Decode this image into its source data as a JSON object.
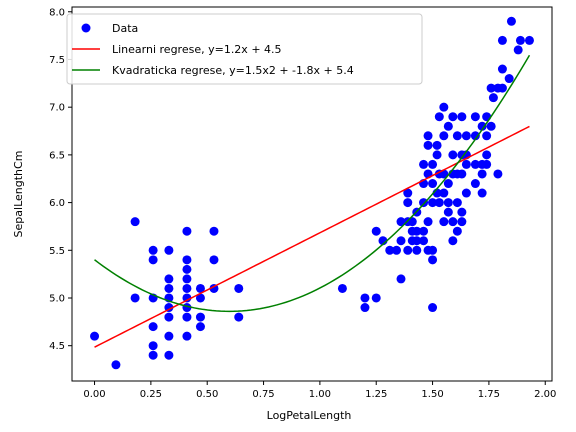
{
  "chart_data": {
    "type": "scatter",
    "xlabel": "LogPetalLength",
    "ylabel": "SepalLengthCm",
    "xlim": [
      -0.1,
      2.03
    ],
    "ylim": [
      4.13,
      8.05
    ],
    "xticks": [
      0.0,
      0.25,
      0.5,
      0.75,
      1.0,
      1.25,
      1.5,
      1.75,
      2.0
    ],
    "xtick_labels": [
      "0.00",
      "0.25",
      "0.50",
      "0.75",
      "1.00",
      "1.25",
      "1.50",
      "1.75",
      "2.00"
    ],
    "yticks": [
      4.5,
      5.0,
      5.5,
      6.0,
      6.5,
      7.0,
      7.5,
      8.0
    ],
    "ytick_labels": [
      "4.5",
      "5.0",
      "5.5",
      "6.0",
      "6.5",
      "7.0",
      "7.5",
      "8.0"
    ],
    "grid": false,
    "legend_placement": "top-left",
    "colors": {
      "data": "#0000ff",
      "linear": "#ff0000",
      "quadratic": "#008000"
    },
    "series": [
      {
        "name": "Data",
        "kind": "scatter",
        "points": [
          [
            0.0,
            4.6
          ],
          [
            0.095,
            4.3
          ],
          [
            0.18,
            5.8
          ],
          [
            0.18,
            5.0
          ],
          [
            0.26,
            5.5
          ],
          [
            0.26,
            5.4
          ],
          [
            0.26,
            5.0
          ],
          [
            0.26,
            4.7
          ],
          [
            0.26,
            4.5
          ],
          [
            0.26,
            4.4
          ],
          [
            0.33,
            5.5
          ],
          [
            0.33,
            5.2
          ],
          [
            0.33,
            5.1
          ],
          [
            0.33,
            5.0
          ],
          [
            0.33,
            4.9
          ],
          [
            0.33,
            4.8
          ],
          [
            0.33,
            4.6
          ],
          [
            0.33,
            4.4
          ],
          [
            0.41,
            5.7
          ],
          [
            0.41,
            5.4
          ],
          [
            0.41,
            5.3
          ],
          [
            0.41,
            5.2
          ],
          [
            0.41,
            5.1
          ],
          [
            0.41,
            5.0
          ],
          [
            0.41,
            4.9
          ],
          [
            0.41,
            4.8
          ],
          [
            0.41,
            4.6
          ],
          [
            0.47,
            5.1
          ],
          [
            0.47,
            5.0
          ],
          [
            0.47,
            4.8
          ],
          [
            0.47,
            4.7
          ],
          [
            0.53,
            5.7
          ],
          [
            0.53,
            5.4
          ],
          [
            0.53,
            5.1
          ],
          [
            0.64,
            5.1
          ],
          [
            0.64,
            4.8
          ],
          [
            1.1,
            5.1
          ],
          [
            1.2,
            5.0
          ],
          [
            1.2,
            4.9
          ],
          [
            1.25,
            5.0
          ],
          [
            1.25,
            5.7
          ],
          [
            1.28,
            5.6
          ],
          [
            1.31,
            5.5
          ],
          [
            1.34,
            5.5
          ],
          [
            1.36,
            5.8
          ],
          [
            1.36,
            5.6
          ],
          [
            1.36,
            5.2
          ],
          [
            1.39,
            6.1
          ],
          [
            1.39,
            6.0
          ],
          [
            1.39,
            5.8
          ],
          [
            1.39,
            5.5
          ],
          [
            1.41,
            5.7
          ],
          [
            1.41,
            5.6
          ],
          [
            1.41,
            5.8
          ],
          [
            1.43,
            5.9
          ],
          [
            1.43,
            5.7
          ],
          [
            1.43,
            5.6
          ],
          [
            1.43,
            5.5
          ],
          [
            1.46,
            6.4
          ],
          [
            1.46,
            6.2
          ],
          [
            1.46,
            6.0
          ],
          [
            1.46,
            5.7
          ],
          [
            1.46,
            5.6
          ],
          [
            1.48,
            6.7
          ],
          [
            1.48,
            6.6
          ],
          [
            1.48,
            6.3
          ],
          [
            1.48,
            5.8
          ],
          [
            1.48,
            5.5
          ],
          [
            1.5,
            6.4
          ],
          [
            1.5,
            6.2
          ],
          [
            1.5,
            6.0
          ],
          [
            1.5,
            5.5
          ],
          [
            1.5,
            5.4
          ],
          [
            1.5,
            4.9
          ],
          [
            1.52,
            6.6
          ],
          [
            1.52,
            6.5
          ],
          [
            1.52,
            6.1
          ],
          [
            1.53,
            6.9
          ],
          [
            1.53,
            6.3
          ],
          [
            1.53,
            6.0
          ],
          [
            1.55,
            7.0
          ],
          [
            1.55,
            6.7
          ],
          [
            1.55,
            6.3
          ],
          [
            1.55,
            6.1
          ],
          [
            1.55,
            5.8
          ],
          [
            1.57,
            6.8
          ],
          [
            1.57,
            6.2
          ],
          [
            1.57,
            6.0
          ],
          [
            1.57,
            5.9
          ],
          [
            1.59,
            6.9
          ],
          [
            1.59,
            6.5
          ],
          [
            1.59,
            6.3
          ],
          [
            1.59,
            5.8
          ],
          [
            1.59,
            5.6
          ],
          [
            1.61,
            6.7
          ],
          [
            1.61,
            6.3
          ],
          [
            1.61,
            6.0
          ],
          [
            1.61,
            5.7
          ],
          [
            1.63,
            6.9
          ],
          [
            1.63,
            6.5
          ],
          [
            1.63,
            6.3
          ],
          [
            1.63,
            5.9
          ],
          [
            1.63,
            5.8
          ],
          [
            1.65,
            6.7
          ],
          [
            1.65,
            6.5
          ],
          [
            1.65,
            6.4
          ],
          [
            1.65,
            6.1
          ],
          [
            1.69,
            6.9
          ],
          [
            1.69,
            6.7
          ],
          [
            1.69,
            6.4
          ],
          [
            1.69,
            6.2
          ],
          [
            1.72,
            6.8
          ],
          [
            1.72,
            6.4
          ],
          [
            1.72,
            6.3
          ],
          [
            1.72,
            6.1
          ],
          [
            1.74,
            6.9
          ],
          [
            1.74,
            6.7
          ],
          [
            1.74,
            6.5
          ],
          [
            1.74,
            6.4
          ],
          [
            1.76,
            7.2
          ],
          [
            1.76,
            6.8
          ],
          [
            1.77,
            7.1
          ],
          [
            1.79,
            7.2
          ],
          [
            1.79,
            6.3
          ],
          [
            1.81,
            7.7
          ],
          [
            1.81,
            7.4
          ],
          [
            1.81,
            7.2
          ],
          [
            1.84,
            7.3
          ],
          [
            1.85,
            7.9
          ],
          [
            1.88,
            7.6
          ],
          [
            1.89,
            7.7
          ],
          [
            1.93,
            7.7
          ]
        ]
      },
      {
        "name": "Linearni regrese, y=1.2x + 4.5",
        "kind": "line",
        "equation": {
          "a": 0,
          "b": 1.1988,
          "c": 4.4847
        },
        "x_range": [
          0.0,
          1.93
        ]
      },
      {
        "name": "Kvadraticka regrese, y=1.5x2 + -1.8x + 5.4",
        "kind": "line",
        "equation": {
          "a": 1.5126,
          "b": -1.8087,
          "c": 5.4007
        },
        "x_range": [
          0.0,
          1.93
        ]
      }
    ]
  }
}
